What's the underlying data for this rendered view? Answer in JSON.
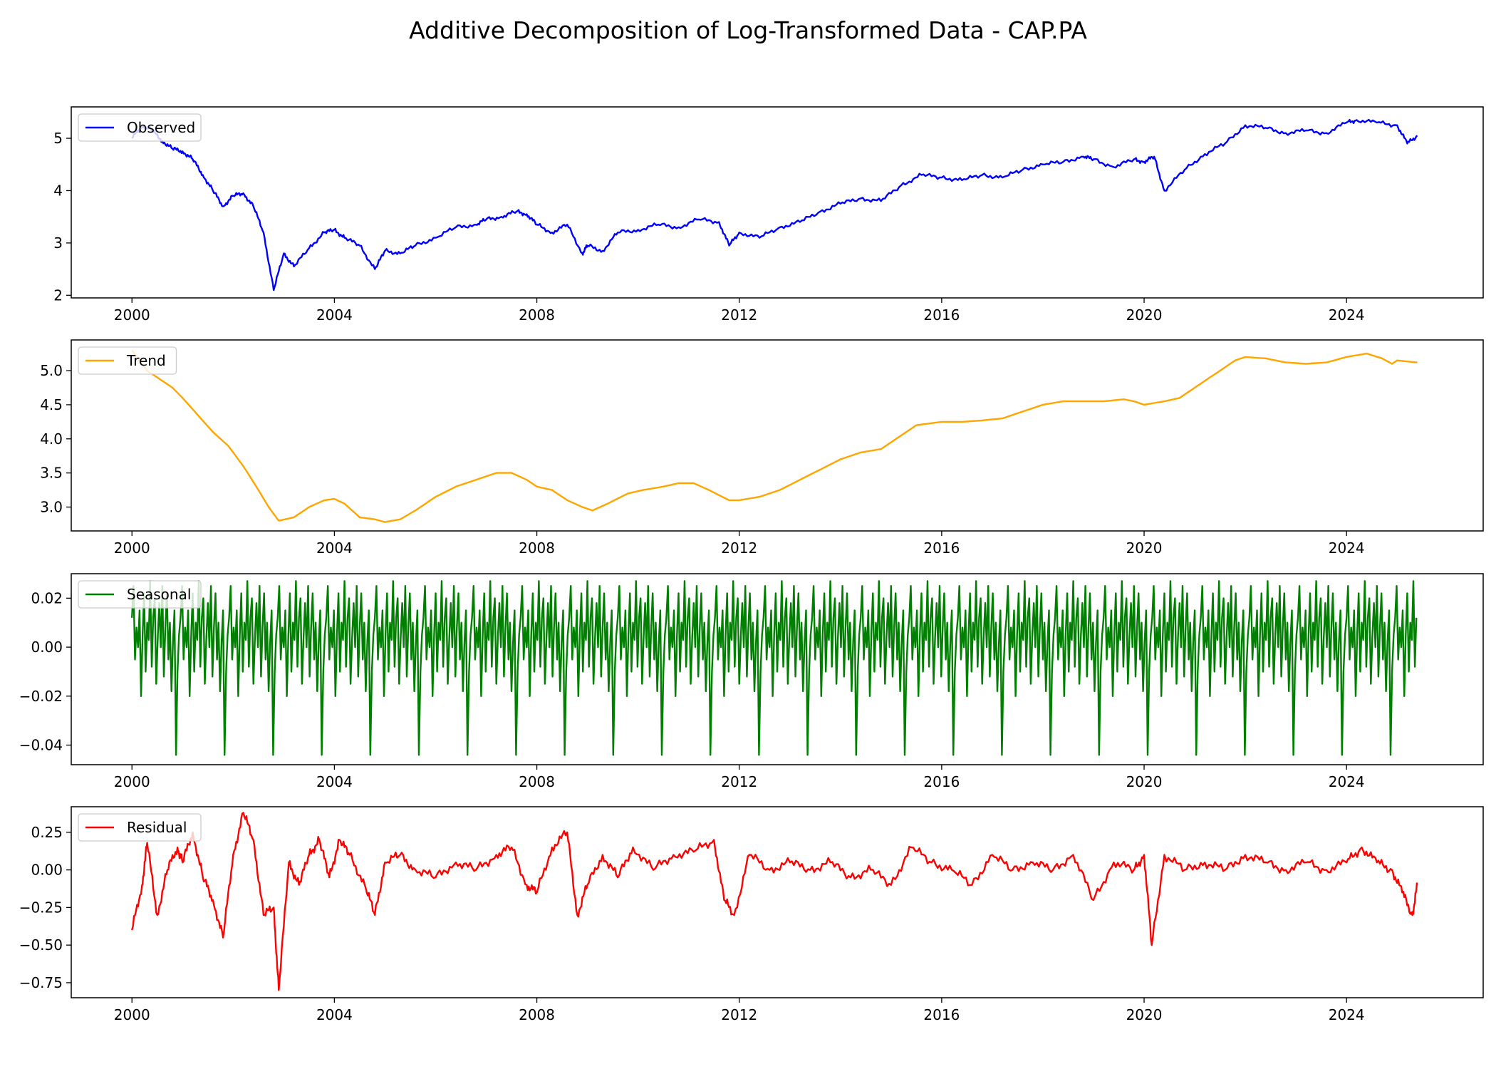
{
  "chart_data": {
    "title": "Additive Decomposition of Log-Transformed Data - CAP.PA",
    "type": "line",
    "x_ticks": [
      2000,
      2004,
      2008,
      2012,
      2016,
      2020,
      2024
    ],
    "xlim": [
      1998.8,
      2026.7
    ],
    "panels": [
      {
        "name": "observed",
        "legend": "Observed",
        "color": "#0000ff",
        "ylim": [
          1.95,
          5.6
        ],
        "y_ticks": [
          "2",
          "3",
          "4",
          "5"
        ],
        "series": {
          "x": [
            2000.0,
            2000.2,
            2000.4,
            2000.6,
            2000.8,
            2001.0,
            2001.2,
            2001.4,
            2001.6,
            2001.8,
            2002.0,
            2002.2,
            2002.4,
            2002.6,
            2002.8,
            2003.0,
            2003.2,
            2003.5,
            2003.8,
            2004.0,
            2004.2,
            2004.5,
            2004.8,
            2005.0,
            2005.3,
            2005.6,
            2006.0,
            2006.4,
            2006.8,
            2007.0,
            2007.3,
            2007.6,
            2007.8,
            2008.0,
            2008.3,
            2008.6,
            2008.9,
            2009.0,
            2009.3,
            2009.6,
            2010.0,
            2010.4,
            2010.8,
            2011.2,
            2011.6,
            2011.8,
            2012.0,
            2012.4,
            2012.8,
            2013.2,
            2013.6,
            2014.0,
            2014.4,
            2014.8,
            2015.2,
            2015.6,
            2016.0,
            2016.4,
            2016.8,
            2017.2,
            2017.6,
            2018.0,
            2018.4,
            2018.8,
            2019.0,
            2019.4,
            2019.8,
            2020.0,
            2020.2,
            2020.4,
            2020.8,
            2021.2,
            2021.6,
            2022.0,
            2022.4,
            2022.8,
            2023.2,
            2023.6,
            2024.0,
            2024.2,
            2024.6,
            2025.0,
            2025.2,
            2025.4
          ],
          "y": [
            5.0,
            5.25,
            5.15,
            4.95,
            4.8,
            4.75,
            4.6,
            4.3,
            4.0,
            3.7,
            3.9,
            3.95,
            3.7,
            3.2,
            2.1,
            2.8,
            2.55,
            2.9,
            3.2,
            3.25,
            3.1,
            2.95,
            2.5,
            2.85,
            2.8,
            2.95,
            3.1,
            3.3,
            3.35,
            3.45,
            3.5,
            3.6,
            3.55,
            3.35,
            3.2,
            3.35,
            2.8,
            2.95,
            2.85,
            3.2,
            3.25,
            3.35,
            3.3,
            3.45,
            3.4,
            2.95,
            3.2,
            3.1,
            3.3,
            3.4,
            3.6,
            3.75,
            3.85,
            3.8,
            4.1,
            4.3,
            4.25,
            4.2,
            4.3,
            4.25,
            4.4,
            4.5,
            4.55,
            4.65,
            4.6,
            4.45,
            4.6,
            4.55,
            4.65,
            4.0,
            4.4,
            4.7,
            4.9,
            5.25,
            5.2,
            5.1,
            5.15,
            5.1,
            5.3,
            5.35,
            5.3,
            5.25,
            4.9,
            5.05
          ]
        }
      },
      {
        "name": "trend",
        "legend": "Trend",
        "color": "#ffa500",
        "ylim": [
          2.65,
          5.45
        ],
        "y_ticks": [
          "3.0",
          "3.5",
          "4.0",
          "4.5",
          "5.0"
        ],
        "series": {
          "x": [
            2000.0,
            2000.3,
            2000.5,
            2000.8,
            2001.0,
            2001.3,
            2001.6,
            2001.9,
            2002.2,
            2002.5,
            2002.7,
            2002.9,
            2003.2,
            2003.5,
            2003.8,
            2004.0,
            2004.2,
            2004.5,
            2004.8,
            2005.0,
            2005.3,
            2005.6,
            2006.0,
            2006.4,
            2006.8,
            2007.2,
            2007.5,
            2007.8,
            2008.0,
            2008.3,
            2008.6,
            2008.9,
            2009.1,
            2009.4,
            2009.8,
            2010.1,
            2010.5,
            2010.8,
            2011.1,
            2011.4,
            2011.8,
            2012.0,
            2012.4,
            2012.8,
            2013.2,
            2013.6,
            2014.0,
            2014.4,
            2014.8,
            2015.2,
            2015.5,
            2016.0,
            2016.4,
            2016.8,
            2017.2,
            2017.6,
            2018.0,
            2018.4,
            2018.8,
            2019.2,
            2019.6,
            2019.8,
            2020.0,
            2020.4,
            2020.7,
            2020.9,
            2021.2,
            2021.5,
            2021.8,
            2022.0,
            2022.4,
            2022.8,
            2023.2,
            2023.6,
            2024.0,
            2024.4,
            2024.7,
            2024.9,
            2025.0,
            2025.4
          ],
          "y": [
            5.3,
            5.0,
            4.9,
            4.75,
            4.6,
            4.35,
            4.1,
            3.9,
            3.6,
            3.25,
            3.0,
            2.8,
            2.85,
            3.0,
            3.1,
            3.12,
            3.05,
            2.85,
            2.82,
            2.78,
            2.82,
            2.95,
            3.15,
            3.3,
            3.4,
            3.5,
            3.5,
            3.4,
            3.3,
            3.25,
            3.1,
            3.0,
            2.95,
            3.05,
            3.2,
            3.25,
            3.3,
            3.35,
            3.35,
            3.25,
            3.1,
            3.1,
            3.15,
            3.25,
            3.4,
            3.55,
            3.7,
            3.8,
            3.85,
            4.05,
            4.2,
            4.25,
            4.25,
            4.27,
            4.3,
            4.4,
            4.5,
            4.55,
            4.55,
            4.55,
            4.58,
            4.55,
            4.5,
            4.55,
            4.6,
            4.7,
            4.85,
            5.0,
            5.15,
            5.2,
            5.18,
            5.12,
            5.1,
            5.12,
            5.2,
            5.25,
            5.18,
            5.1,
            5.15,
            5.12
          ]
        }
      },
      {
        "name": "seasonal",
        "legend": "Seasonal",
        "color": "#008000",
        "ylim": [
          -0.048,
          0.03
        ],
        "y_ticks": [
          "−0.04",
          "−0.02",
          "0.00",
          "0.02"
        ],
        "series": {
          "start": 2000.0,
          "end": 2025.4,
          "period_years": 0.96,
          "pattern": [
            0.012,
            0.025,
            -0.005,
            0.008,
            0.0,
            0.015,
            -0.02,
            0.005,
            0.022,
            -0.01,
            0.01,
            0.003,
            0.027,
            -0.008,
            0.012,
            0.02,
            -0.015,
            0.004,
            0.018,
            0.0,
            0.025,
            -0.012,
            0.008,
            0.022,
            -0.005,
            0.01,
            -0.018,
            0.002,
            0.015,
            -0.044,
            -0.01,
            0.005
          ]
        }
      },
      {
        "name": "residual",
        "legend": "Residual",
        "color": "#ff0000",
        "ylim": [
          -0.85,
          0.42
        ],
        "y_ticks": [
          "−0.75",
          "−0.50",
          "−0.25",
          "0.00",
          "0.25"
        ],
        "series": {
          "x": [
            2000.0,
            2000.2,
            2000.3,
            2000.5,
            2000.7,
            2000.9,
            2001.0,
            2001.2,
            2001.4,
            2001.6,
            2001.8,
            2002.0,
            2002.2,
            2002.4,
            2002.6,
            2002.8,
            2002.9,
            2003.1,
            2003.3,
            2003.5,
            2003.7,
            2003.9,
            2004.1,
            2004.3,
            2004.6,
            2004.8,
            2005.0,
            2005.3,
            2005.6,
            2006.0,
            2006.4,
            2006.8,
            2007.2,
            2007.5,
            2007.8,
            2008.0,
            2008.3,
            2008.6,
            2008.8,
            2009.0,
            2009.3,
            2009.6,
            2009.9,
            2010.3,
            2010.7,
            2011.1,
            2011.5,
            2011.7,
            2011.9,
            2012.2,
            2012.6,
            2013.0,
            2013.4,
            2013.8,
            2014.2,
            2014.6,
            2015.0,
            2015.4,
            2015.8,
            2016.2,
            2016.6,
            2017.0,
            2017.4,
            2017.8,
            2018.2,
            2018.6,
            2019.0,
            2019.4,
            2019.8,
            2020.0,
            2020.15,
            2020.4,
            2020.8,
            2021.2,
            2021.6,
            2022.0,
            2022.4,
            2022.8,
            2023.2,
            2023.6,
            2024.0,
            2024.3,
            2024.6,
            2024.9,
            2025.1,
            2025.3,
            2025.4
          ],
          "y": [
            -0.4,
            -0.1,
            0.18,
            -0.3,
            0.0,
            0.15,
            0.05,
            0.25,
            -0.05,
            -0.2,
            -0.45,
            0.1,
            0.38,
            0.2,
            -0.3,
            -0.25,
            -0.8,
            0.05,
            -0.1,
            0.1,
            0.2,
            -0.05,
            0.2,
            0.1,
            -0.1,
            -0.3,
            0.05,
            0.1,
            0.0,
            -0.05,
            0.05,
            0.0,
            0.1,
            0.15,
            -0.1,
            -0.15,
            0.15,
            0.25,
            -0.3,
            -0.1,
            0.1,
            -0.05,
            0.15,
            0.0,
            0.1,
            0.12,
            0.2,
            -0.2,
            -0.3,
            0.1,
            0.0,
            0.05,
            0.0,
            0.05,
            -0.05,
            0.0,
            -0.1,
            0.15,
            0.05,
            0.0,
            -0.1,
            0.1,
            0.0,
            0.05,
            0.0,
            0.1,
            -0.2,
            0.05,
            0.0,
            0.1,
            -0.5,
            0.1,
            0.0,
            0.05,
            0.0,
            0.1,
            0.05,
            0.0,
            0.05,
            0.0,
            0.05,
            0.15,
            0.05,
            0.0,
            -0.15,
            -0.3,
            -0.1
          ]
        }
      }
    ]
  }
}
